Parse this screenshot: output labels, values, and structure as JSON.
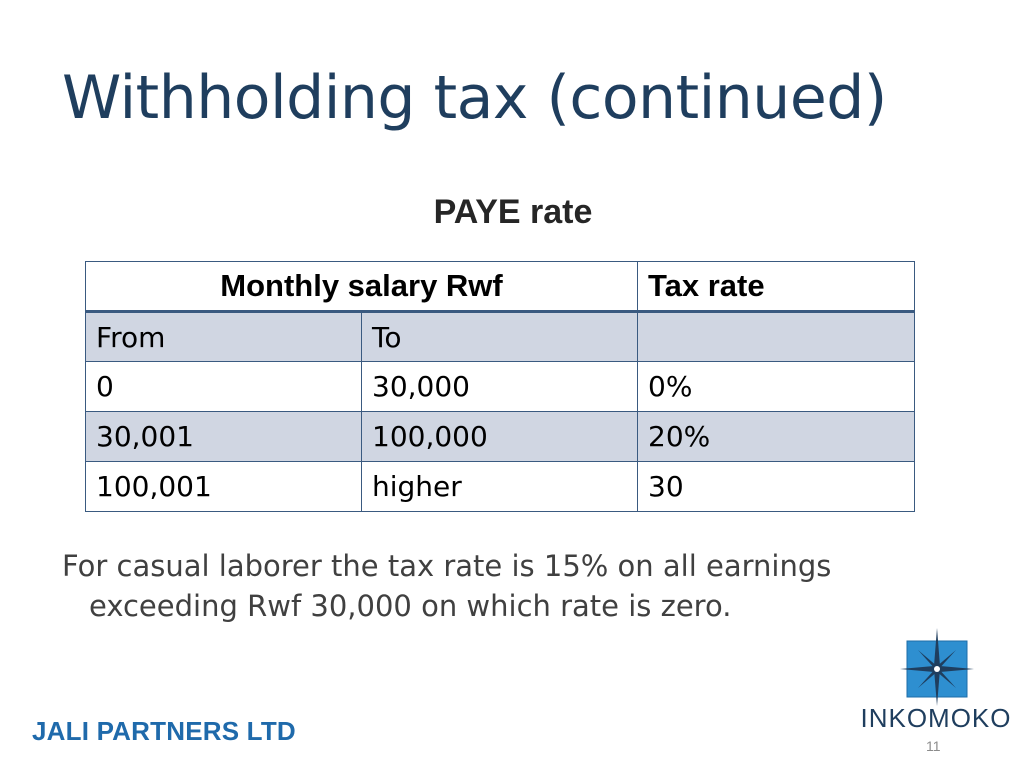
{
  "slide": {
    "title": "Withholding tax (continued)",
    "subtitle": "PAYE rate",
    "table": {
      "header": {
        "salary": "Monthly salary Rwf",
        "rate": "Tax rate"
      },
      "subheader": {
        "from": "From",
        "to": "To",
        "rate": ""
      },
      "rows": [
        {
          "from": "0",
          "to": "30,000",
          "rate": "0%"
        },
        {
          "from": "30,001",
          "to": "100,000",
          "rate": "20%"
        },
        {
          "from": "100,001",
          "to": "higher",
          "rate": "30"
        }
      ]
    },
    "note": {
      "line1": "For casual laborer the tax rate is 15% on all earnings",
      "line2": "exceeding Rwf 30,000 on which rate is zero."
    },
    "footer": {
      "company": "JALI PARTNERS LTD",
      "logo_text": "INKOMOKO",
      "page_number": "11"
    },
    "colors": {
      "title": "#1f3e5e",
      "footer_company": "#1f6aab",
      "table_border": "#3a5a80",
      "table_shade": "#d0d6e2",
      "logo_square": "#2e8fd0"
    },
    "icons": {
      "logo": "compass-star-icon"
    }
  }
}
